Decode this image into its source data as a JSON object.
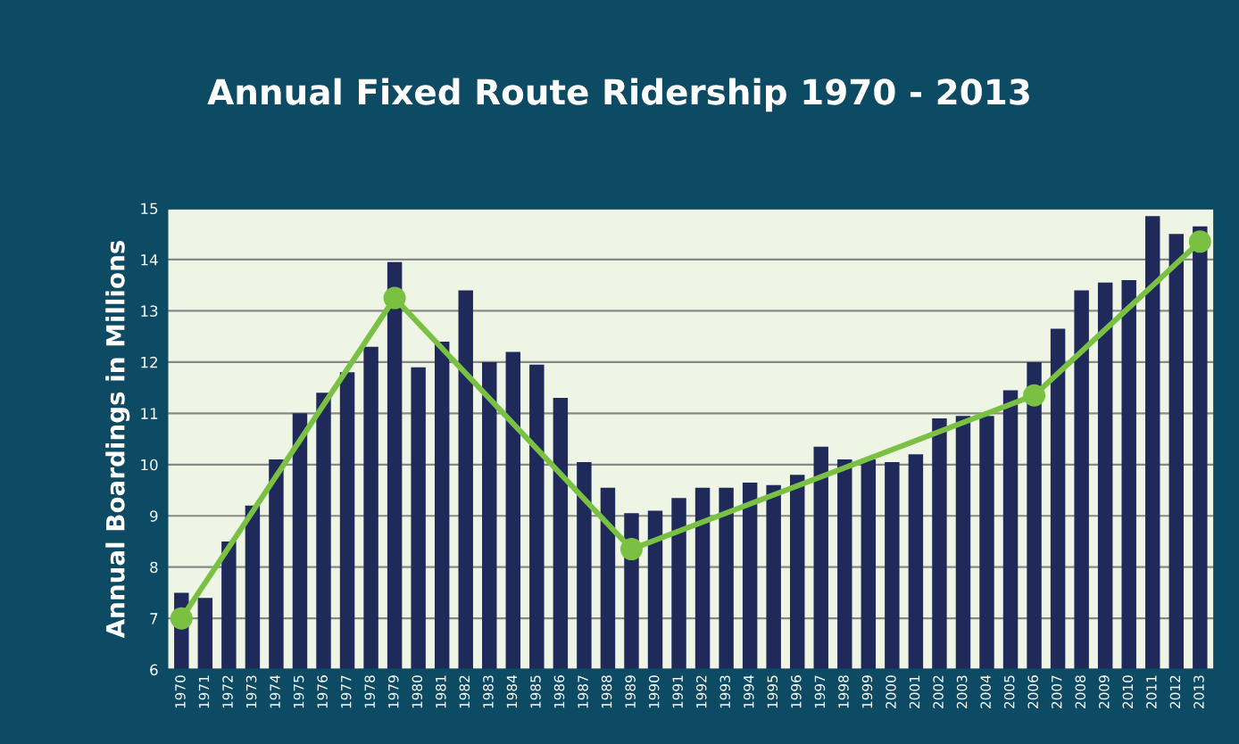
{
  "chart_data": {
    "type": "bar",
    "title": "Annual Fixed Route Ridership 1970 - 2013",
    "ylabel": "Annual Boardings in Millions",
    "categories": [
      "1970",
      "1971",
      "1972",
      "1973",
      "1974",
      "1975",
      "1976",
      "1977",
      "1978",
      "1979",
      "1980",
      "1981",
      "1982",
      "1983",
      "1984",
      "1985",
      "1986",
      "1987",
      "1988",
      "1989",
      "1990",
      "1991",
      "1992",
      "1993",
      "1994",
      "1995",
      "1996",
      "1997",
      "1998",
      "1999",
      "2000",
      "2001",
      "2002",
      "2003",
      "2004",
      "2005",
      "2006",
      "2007",
      "2008",
      "2009",
      "2010",
      "2011",
      "2012",
      "2013"
    ],
    "series": [
      {
        "color": "#1f2a5a",
        "values": [
          7.5,
          7.4,
          8.5,
          9.2,
          10.1,
          11.0,
          11.4,
          11.8,
          12.3,
          13.95,
          11.9,
          12.4,
          13.4,
          12.0,
          12.2,
          11.95,
          11.3,
          10.05,
          9.55,
          9.05,
          9.1,
          9.35,
          9.55,
          9.55,
          9.65,
          9.6,
          9.8,
          10.35,
          10.1,
          10.1,
          10.05,
          10.2,
          10.9,
          10.95,
          10.95,
          11.45,
          12.0,
          12.65,
          13.4,
          13.55,
          13.6,
          14.85,
          14.5,
          14.65
        ]
      },
      {
        "type": "line",
        "color": "#7ac143",
        "marker": "circle",
        "values": [
          7.0,
          null,
          null,
          null,
          null,
          null,
          null,
          null,
          null,
          13.25,
          null,
          null,
          null,
          null,
          null,
          null,
          null,
          null,
          null,
          8.35,
          null,
          null,
          null,
          null,
          null,
          null,
          null,
          null,
          null,
          null,
          null,
          null,
          null,
          null,
          null,
          null,
          11.35,
          null,
          null,
          null,
          null,
          null,
          null,
          14.35
        ]
      }
    ],
    "ylim": [
      6,
      15
    ],
    "yticks": [
      6,
      7,
      8,
      9,
      10,
      11,
      12,
      13,
      14,
      15
    ],
    "grid": "y",
    "legend": false
  }
}
